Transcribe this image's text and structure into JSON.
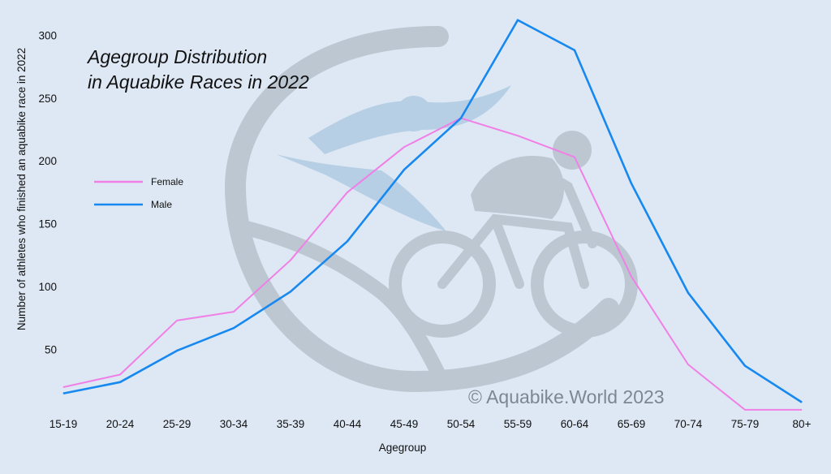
{
  "chart_data": {
    "type": "line",
    "title_lines": [
      "Agegroup Distribution",
      "in Aquabike Races in 2022"
    ],
    "xlabel": "Agegroup",
    "ylabel": "Number of athletes who finished an aquabike race in 2022",
    "categories": [
      "15-19",
      "20-24",
      "25-29",
      "30-34",
      "35-39",
      "40-44",
      "45-49",
      "50-54",
      "55-59",
      "60-64",
      "65-69",
      "70-74",
      "75-79",
      "80+"
    ],
    "ylim": [
      0,
      320
    ],
    "yticks": [
      50,
      100,
      150,
      200,
      250,
      300
    ],
    "legend_position": "left",
    "series": [
      {
        "name": "Female",
        "color": "#f07fe6",
        "values": [
          20,
          30,
          73,
          80,
          121,
          175,
          211,
          234,
          220,
          203,
          108,
          38,
          2,
          2
        ]
      },
      {
        "name": "Male",
        "color": "#1688f0",
        "values": [
          15,
          24,
          49,
          67,
          96,
          136,
          193,
          234,
          312,
          288,
          182,
          95,
          37,
          8
        ]
      }
    ]
  },
  "watermark": {
    "text": "© Aquabike.World 2023",
    "logo": "aquabike-world-logo"
  }
}
